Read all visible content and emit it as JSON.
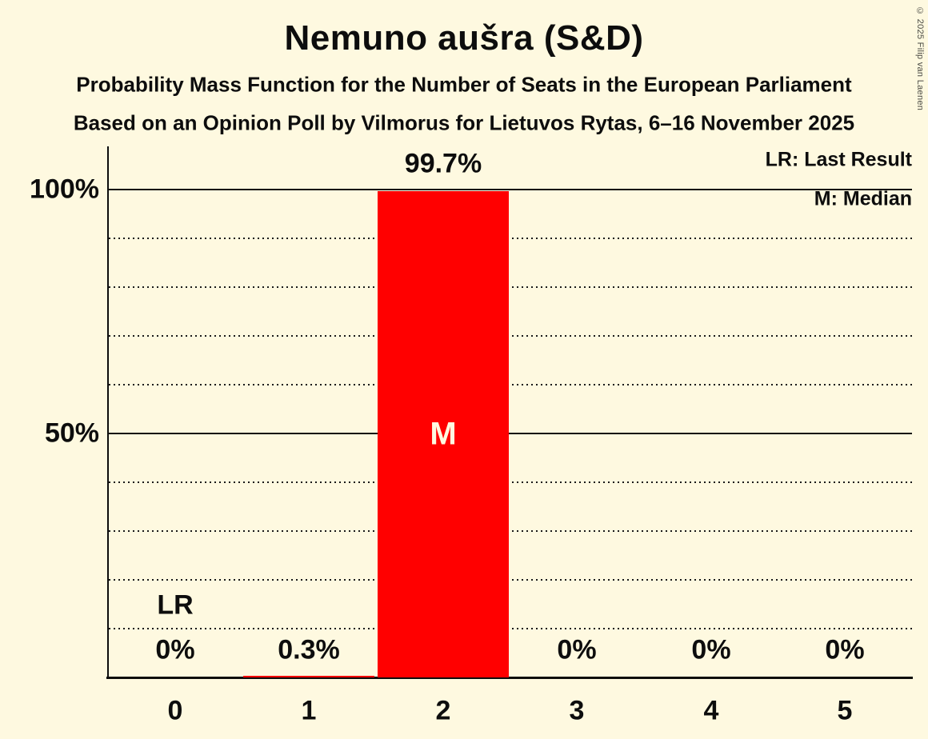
{
  "page": {
    "background_color": "#FEF9E0",
    "text_color": "#0D0D0D",
    "copyright": "© 2025 Filip van Laenen"
  },
  "header": {
    "title": "Nemuno aušra (S&D)",
    "subtitle_line1": "Probability Mass Function for the Number of Seats in the European Parliament",
    "subtitle_line2": "Based on an Opinion Poll by Vilmorus for Lietuvos Rytas, 6–16 November 2025"
  },
  "legend": {
    "last_result": "LR: Last Result",
    "median": "M: Median"
  },
  "chart_data": {
    "type": "bar",
    "title": "Nemuno aušra (S&D)",
    "categories": [
      "0",
      "1",
      "2",
      "3",
      "4",
      "5"
    ],
    "values": [
      0,
      0.3,
      99.7,
      0,
      0,
      0
    ],
    "value_labels": [
      "0%",
      "0.3%",
      "99.7%",
      "0%",
      "0%",
      "0%"
    ],
    "y_ticks": [
      {
        "value": 100,
        "label": "100%"
      },
      {
        "value": 50,
        "label": "50%"
      }
    ],
    "ylim": [
      0,
      100
    ],
    "dotted_gridlines_pct": [
      10,
      20,
      30,
      40,
      60,
      70,
      80,
      90
    ],
    "solid_gridlines_pct": [
      50,
      100
    ],
    "grid_on": true,
    "legend_position": "top-right",
    "bar_color": "#FF0000",
    "bar_text_color": "#FEF9E0",
    "median_seat_index": 2,
    "median_marker": "M",
    "last_result_seat_index": 0,
    "last_result_marker": "LR"
  }
}
